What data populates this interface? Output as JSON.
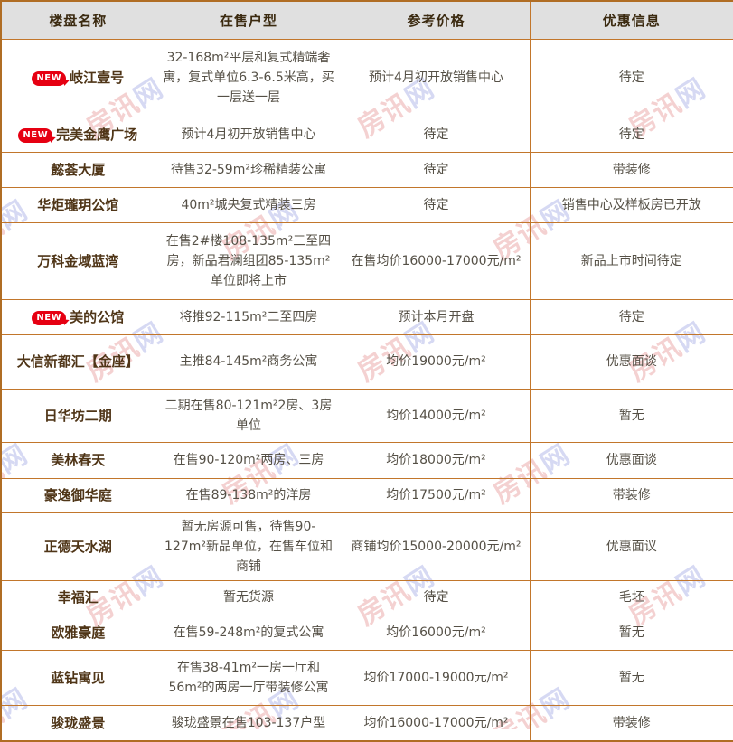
{
  "watermark": {
    "primary": "房讯",
    "secondary": "网"
  },
  "colors": {
    "border": "#c2762b",
    "outer_border": "#b06d24",
    "header_bg": "#e0e0e0",
    "header_text": "#3b2a10",
    "name_text": "#4f3517",
    "body_text": "#555046",
    "badge_bg": "#e60012"
  },
  "table": {
    "new_badge_label": "NEW",
    "headers": [
      "楼盘名称",
      "在售户型",
      "参考价格",
      "优惠信息"
    ],
    "rows": [
      {
        "name": "岐江壹号",
        "is_new": true,
        "units": "32-168m²平层和复式精端奢寓，复式单位6.3-6.5米高，买一层送一层",
        "price": "预计4月初开放销售中心",
        "promo": "待定"
      },
      {
        "name": "完美金鹰广场",
        "is_new": true,
        "units": "预计4月初开放销售中心",
        "price": "待定",
        "promo": "待定"
      },
      {
        "name": "懿荟大厦",
        "is_new": false,
        "units": "待售32-59m²珍稀精装公寓",
        "price": "待定",
        "promo": "带装修"
      },
      {
        "name": "华炬瓏玥公馆",
        "is_new": false,
        "units": "40m²城央复式精装三房",
        "price": "待定",
        "promo": "销售中心及样板房已开放"
      },
      {
        "name": "万科金域蓝湾",
        "is_new": false,
        "units": "在售2#楼108-135m²三至四房，新品君澜组团85-135m²单位即将上市",
        "price": "在售均价16000-17000元/m²",
        "promo": "新品上市时间待定"
      },
      {
        "name": "美的公馆",
        "is_new": true,
        "units": "将推92-115m²二至四房",
        "price": "预计本月开盘",
        "promo": "待定"
      },
      {
        "name": "大信新都汇【金座】",
        "is_new": false,
        "units": "主推84-145m²商务公寓",
        "price": "均价19000元/m²",
        "promo": "优惠面谈"
      },
      {
        "name": "日华坊二期",
        "is_new": false,
        "units": "二期在售80-121m²2房、3房单位",
        "price": "均价14000元/m²",
        "promo": "暂无"
      },
      {
        "name": "美林春天",
        "is_new": false,
        "units": "在售90-120m²两房、三房",
        "price": "均价18000元/m²",
        "promo": "优惠面谈"
      },
      {
        "name": "豪逸御华庭",
        "is_new": false,
        "units": "在售89-138m²的洋房",
        "price": "均价17500元/m²",
        "promo": "带装修"
      },
      {
        "name": "正德天水湖",
        "is_new": false,
        "units": "暂无房源可售，待售90-127m²新品单位，在售车位和商铺",
        "price": "商铺均价15000-20000元/m²",
        "promo": "优惠面议"
      },
      {
        "name": "幸福汇",
        "is_new": false,
        "units": "暂无货源",
        "price": "待定",
        "promo": "毛坯"
      },
      {
        "name": "欧雅豪庭",
        "is_new": false,
        "units": "在售59-248m²的复式公寓",
        "price": "均价16000元/m²",
        "promo": "暂无"
      },
      {
        "name": "蓝钻寓见",
        "is_new": false,
        "units": "在售38-41m²一房一厅和56m²的两房一厅带装修公寓",
        "price": "均价17000-19000元/m²",
        "promo": "暂无"
      },
      {
        "name": "骏珑盛景",
        "is_new": false,
        "units": "骏珑盛景在售103-137户型",
        "price": "均价16000-17000元/m²",
        "promo": "带装修"
      }
    ]
  }
}
